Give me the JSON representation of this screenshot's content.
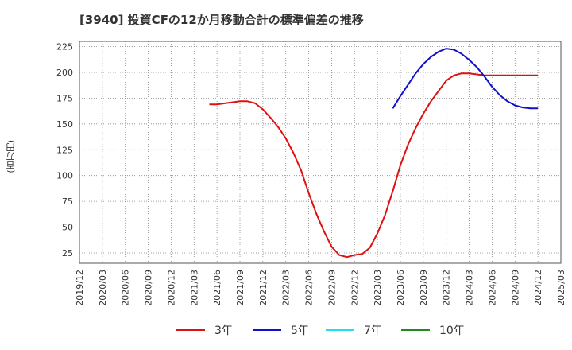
{
  "chart_data": {
    "type": "line",
    "title": "[3940]  投資CFの12か月移動合計の標準偏差の推移",
    "ylabel": "(百万円)",
    "xlabel": "",
    "ylim": [
      15,
      230
    ],
    "yticks": [
      25,
      50,
      75,
      100,
      125,
      150,
      175,
      200,
      225
    ],
    "xticks": [
      "2019/12",
      "2020/03",
      "2020/06",
      "2020/09",
      "2020/12",
      "2021/03",
      "2021/06",
      "2021/09",
      "2021/12",
      "2022/03",
      "2022/06",
      "2022/09",
      "2022/12",
      "2023/03",
      "2023/06",
      "2023/09",
      "2023/12",
      "2024/03",
      "2024/06",
      "2024/09",
      "2024/12",
      "2025/03"
    ],
    "grid": true,
    "legend_position": "bottom",
    "series": [
      {
        "name": "3年",
        "color": "#dd1111",
        "points": [
          [
            "2021/05",
            169
          ],
          [
            "2021/06",
            169
          ],
          [
            "2021/07",
            170
          ],
          [
            "2021/08",
            171
          ],
          [
            "2021/09",
            172
          ],
          [
            "2021/10",
            172
          ],
          [
            "2021/11",
            170
          ],
          [
            "2021/12",
            164
          ],
          [
            "2022/01",
            156
          ],
          [
            "2022/02",
            147
          ],
          [
            "2022/03",
            136
          ],
          [
            "2022/04",
            122
          ],
          [
            "2022/05",
            105
          ],
          [
            "2022/06",
            83
          ],
          [
            "2022/07",
            63
          ],
          [
            "2022/08",
            46
          ],
          [
            "2022/09",
            31
          ],
          [
            "2022/10",
            23
          ],
          [
            "2022/11",
            21
          ],
          [
            "2022/12",
            23
          ],
          [
            "2023/01",
            24
          ],
          [
            "2023/02",
            30
          ],
          [
            "2023/03",
            44
          ],
          [
            "2023/04",
            62
          ],
          [
            "2023/05",
            85
          ],
          [
            "2023/06",
            110
          ],
          [
            "2023/07",
            130
          ],
          [
            "2023/08",
            146
          ],
          [
            "2023/09",
            160
          ],
          [
            "2023/10",
            172
          ],
          [
            "2023/11",
            182
          ],
          [
            "2023/12",
            192
          ],
          [
            "2024/01",
            197
          ],
          [
            "2024/02",
            199
          ],
          [
            "2024/03",
            199
          ],
          [
            "2024/04",
            198
          ],
          [
            "2024/05",
            197
          ],
          [
            "2024/06",
            197
          ],
          [
            "2024/07",
            197
          ],
          [
            "2024/08",
            197
          ],
          [
            "2024/09",
            197
          ],
          [
            "2024/10",
            197
          ],
          [
            "2024/11",
            197
          ],
          [
            "2024/12",
            197
          ]
        ]
      },
      {
        "name": "5年",
        "color": "#1111cc",
        "points": [
          [
            "2023/05",
            165
          ],
          [
            "2023/06",
            177
          ],
          [
            "2023/07",
            188
          ],
          [
            "2023/08",
            199
          ],
          [
            "2023/09",
            208
          ],
          [
            "2023/10",
            215
          ],
          [
            "2023/11",
            220
          ],
          [
            "2023/12",
            223
          ],
          [
            "2024/01",
            222
          ],
          [
            "2024/02",
            218
          ],
          [
            "2024/03",
            212
          ],
          [
            "2024/04",
            205
          ],
          [
            "2024/05",
            196
          ],
          [
            "2024/06",
            186
          ],
          [
            "2024/07",
            178
          ],
          [
            "2024/08",
            172
          ],
          [
            "2024/09",
            168
          ],
          [
            "2024/10",
            166
          ],
          [
            "2024/11",
            165
          ],
          [
            "2024/12",
            165
          ]
        ]
      },
      {
        "name": "7年",
        "color": "#22ddee",
        "points": []
      },
      {
        "name": "10年",
        "color": "#228822",
        "points": []
      }
    ]
  }
}
